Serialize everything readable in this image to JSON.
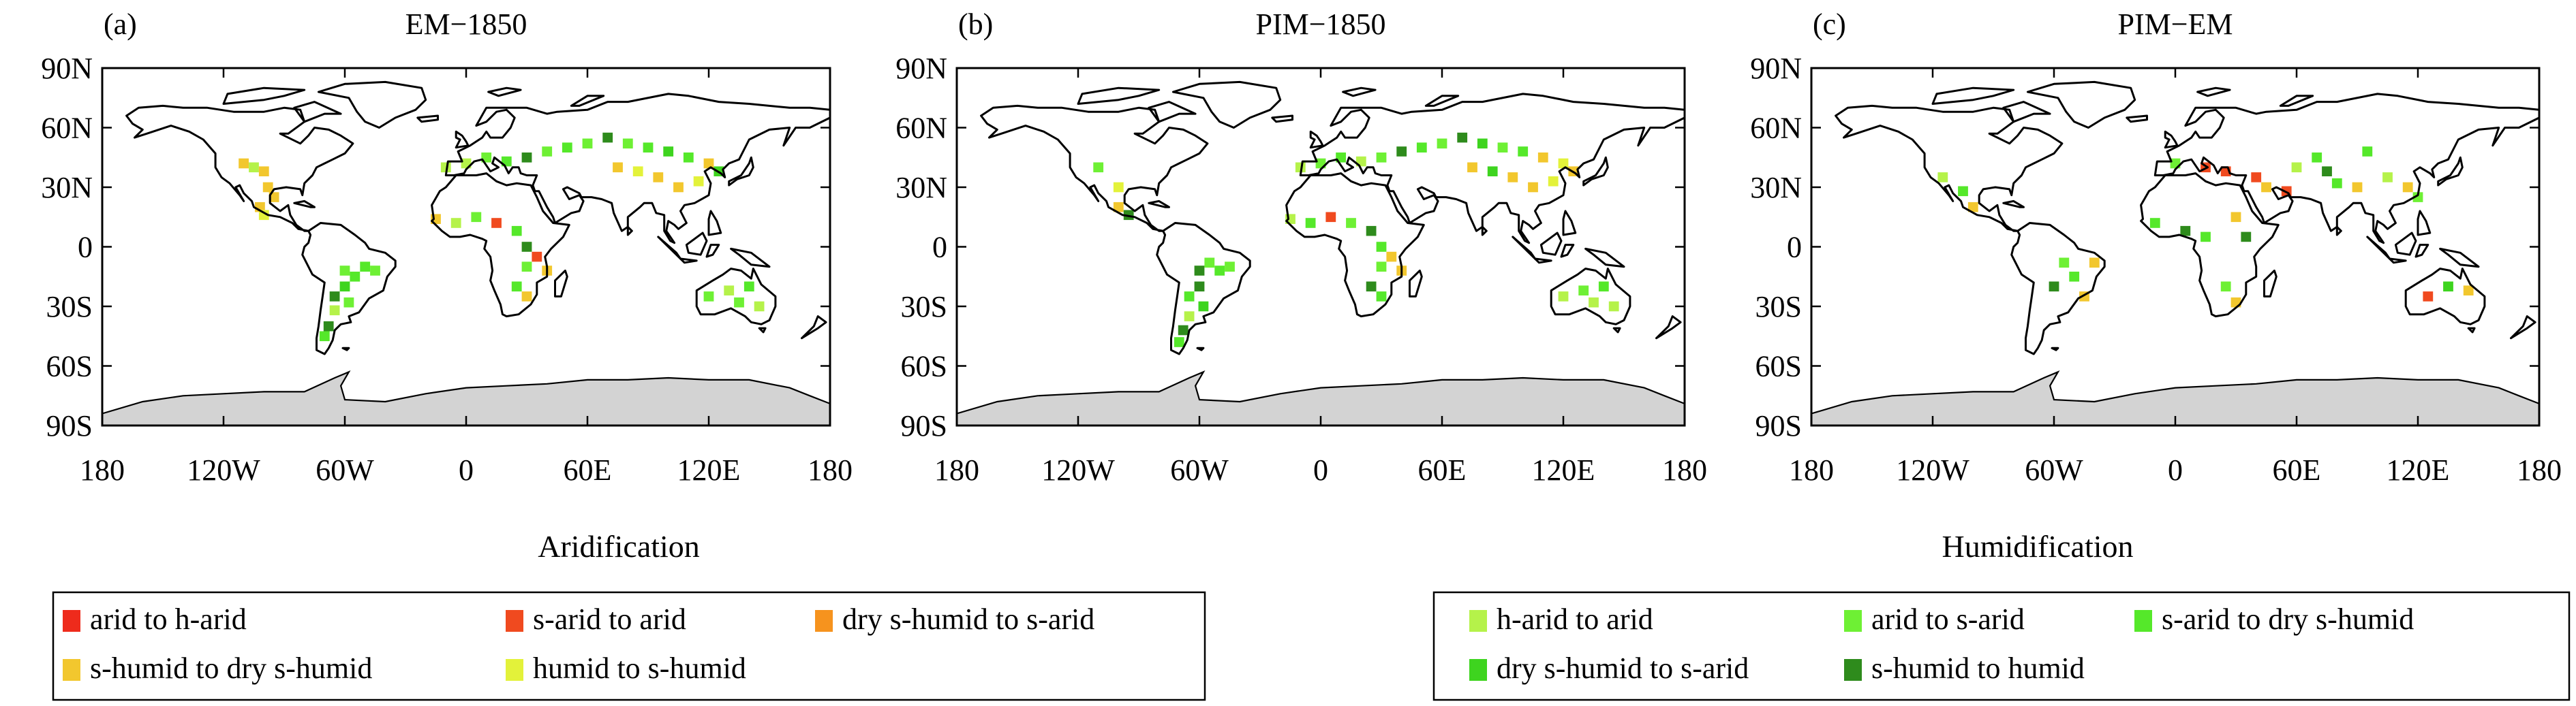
{
  "panels": [
    {
      "tag": "(a)",
      "title": "EM−1850"
    },
    {
      "tag": "(b)",
      "title": "PIM−1850"
    },
    {
      "tag": "(c)",
      "title": "PIM−EM"
    }
  ],
  "y_ticks": [
    "90N",
    "60N",
    "30N",
    "0",
    "30S",
    "60S",
    "90S"
  ],
  "x_ticks": [
    "180",
    "120W",
    "60W",
    "0",
    "60E",
    "120E",
    "180"
  ],
  "legend": {
    "aridification": {
      "title": "Aridification",
      "items": [
        {
          "label": "arid to h-arid",
          "color": "#ee2b1c"
        },
        {
          "label": "s-arid to arid",
          "color": "#f04a1f"
        },
        {
          "label": "dry s-humid to s-arid",
          "color": "#f6931e"
        },
        {
          "label": "s-humid to dry s-humid",
          "color": "#f2c72e"
        },
        {
          "label": "humid to s-humid",
          "color": "#e3f23a"
        }
      ]
    },
    "humidification": {
      "title": "Humidification",
      "items": [
        {
          "label": "h-arid to arid",
          "color": "#b5f24a"
        },
        {
          "label": "arid to s-arid",
          "color": "#6ef034"
        },
        {
          "label": "s-arid to dry s-humid",
          "color": "#55e82a"
        },
        {
          "label": "dry s-humid to s-arid",
          "color": "#3ed41f"
        },
        {
          "label": "s-humid to humid",
          "color": "#2e8b1c"
        }
      ]
    }
  },
  "colors": {
    "antarctica": "#d3d3d3",
    "coast": "#000000"
  },
  "chart_data": [
    {
      "type": "heatmap",
      "title": "EM−1850",
      "panel": "(a)",
      "xlim": [
        -180,
        180
      ],
      "ylim": [
        -90,
        90
      ],
      "cells": [
        [
          -110,
          42,
          "s-humid to dry s-humid"
        ],
        [
          -105,
          40,
          "h-arid to arid"
        ],
        [
          -100,
          38,
          "s-humid to dry s-humid"
        ],
        [
          -98,
          30,
          "s-humid to dry s-humid"
        ],
        [
          -95,
          25,
          "s-humid to dry s-humid"
        ],
        [
          -102,
          20,
          "s-humid to dry s-humid"
        ],
        [
          -100,
          16,
          "humid to s-humid"
        ],
        [
          -60,
          -12,
          "arid to s-arid"
        ],
        [
          -55,
          -15,
          "s-arid to dry s-humid"
        ],
        [
          -50,
          -10,
          "s-arid to dry s-humid"
        ],
        [
          -45,
          -12,
          "arid to s-arid"
        ],
        [
          -60,
          -20,
          "dry s-humid to s-arid"
        ],
        [
          -65,
          -25,
          "s-humid to humid"
        ],
        [
          -58,
          -28,
          "arid to s-arid"
        ],
        [
          -65,
          -32,
          "h-arid to arid"
        ],
        [
          -68,
          -40,
          "s-humid to humid"
        ],
        [
          -70,
          -45,
          "s-arid to dry s-humid"
        ],
        [
          -10,
          40,
          "h-arid to arid"
        ],
        [
          0,
          42,
          "h-arid to arid"
        ],
        [
          10,
          45,
          "arid to s-arid"
        ],
        [
          20,
          43,
          "s-arid to dry s-humid"
        ],
        [
          30,
          45,
          "s-humid to humid"
        ],
        [
          40,
          48,
          "arid to s-arid"
        ],
        [
          50,
          50,
          "s-arid to dry s-humid"
        ],
        [
          60,
          52,
          "arid to s-arid"
        ],
        [
          70,
          55,
          "s-humid to humid"
        ],
        [
          80,
          52,
          "arid to s-arid"
        ],
        [
          90,
          50,
          "s-arid to dry s-humid"
        ],
        [
          100,
          48,
          "dry s-humid to s-arid"
        ],
        [
          110,
          45,
          "s-arid to dry s-humid"
        ],
        [
          120,
          42,
          "s-humid to dry s-humid"
        ],
        [
          75,
          40,
          "s-humid to dry s-humid"
        ],
        [
          85,
          38,
          "humid to s-humid"
        ],
        [
          95,
          35,
          "s-humid to dry s-humid"
        ],
        [
          105,
          30,
          "s-humid to dry s-humid"
        ],
        [
          115,
          33,
          "humid to s-humid"
        ],
        [
          125,
          38,
          "dry s-humid to s-arid"
        ],
        [
          -15,
          14,
          "s-humid to dry s-humid"
        ],
        [
          -5,
          12,
          "h-arid to arid"
        ],
        [
          5,
          15,
          "arid to s-arid"
        ],
        [
          15,
          12,
          "s-arid to arid"
        ],
        [
          25,
          8,
          "s-arid to dry s-humid"
        ],
        [
          30,
          0,
          "s-humid to humid"
        ],
        [
          35,
          -5,
          "s-arid to arid"
        ],
        [
          30,
          -10,
          "arid to s-arid"
        ],
        [
          25,
          -20,
          "s-arid to dry s-humid"
        ],
        [
          30,
          -25,
          "s-humid to dry s-humid"
        ],
        [
          40,
          -12,
          "s-humid to dry s-humid"
        ],
        [
          120,
          -25,
          "arid to s-arid"
        ],
        [
          130,
          -22,
          "h-arid to arid"
        ],
        [
          140,
          -20,
          "s-arid to dry s-humid"
        ],
        [
          135,
          -28,
          "arid to s-arid"
        ],
        [
          145,
          -30,
          "h-arid to arid"
        ]
      ]
    },
    {
      "type": "heatmap",
      "title": "PIM−1850",
      "panel": "(b)",
      "xlim": [
        -180,
        180
      ],
      "ylim": [
        -90,
        90
      ],
      "cells": [
        [
          -110,
          40,
          "arid to s-arid"
        ],
        [
          -100,
          30,
          "humid to s-humid"
        ],
        [
          -100,
          20,
          "s-humid to dry s-humid"
        ],
        [
          -95,
          16,
          "s-humid to humid"
        ],
        [
          -60,
          -12,
          "s-humid to humid"
        ],
        [
          -55,
          -8,
          "arid to s-arid"
        ],
        [
          -50,
          -12,
          "s-arid to dry s-humid"
        ],
        [
          -45,
          -10,
          "arid to s-arid"
        ],
        [
          -60,
          -20,
          "s-humid to humid"
        ],
        [
          -65,
          -25,
          "s-arid to dry s-humid"
        ],
        [
          -58,
          -30,
          "dry s-humid to s-arid"
        ],
        [
          -65,
          -35,
          "h-arid to arid"
        ],
        [
          -68,
          -42,
          "s-humid to humid"
        ],
        [
          -70,
          -48,
          "s-arid to dry s-humid"
        ],
        [
          -10,
          40,
          "h-arid to arid"
        ],
        [
          0,
          42,
          "arid to s-arid"
        ],
        [
          10,
          45,
          "s-arid to dry s-humid"
        ],
        [
          20,
          43,
          "h-arid to arid"
        ],
        [
          30,
          45,
          "arid to s-arid"
        ],
        [
          40,
          48,
          "s-humid to humid"
        ],
        [
          50,
          50,
          "s-arid to dry s-humid"
        ],
        [
          60,
          52,
          "arid to s-arid"
        ],
        [
          70,
          55,
          "s-humid to humid"
        ],
        [
          80,
          52,
          "dry s-humid to s-arid"
        ],
        [
          90,
          50,
          "arid to s-arid"
        ],
        [
          100,
          48,
          "s-arid to dry s-humid"
        ],
        [
          110,
          45,
          "s-humid to dry s-humid"
        ],
        [
          120,
          42,
          "humid to s-humid"
        ],
        [
          75,
          40,
          "s-humid to dry s-humid"
        ],
        [
          85,
          38,
          "dry s-humid to s-arid"
        ],
        [
          95,
          35,
          "s-humid to dry s-humid"
        ],
        [
          105,
          30,
          "s-humid to dry s-humid"
        ],
        [
          115,
          33,
          "humid to s-humid"
        ],
        [
          125,
          38,
          "s-humid to dry s-humid"
        ],
        [
          -15,
          14,
          "h-arid to arid"
        ],
        [
          -5,
          12,
          "s-arid to dry s-humid"
        ],
        [
          5,
          15,
          "s-arid to arid"
        ],
        [
          15,
          12,
          "arid to s-arid"
        ],
        [
          25,
          8,
          "s-humid to humid"
        ],
        [
          30,
          0,
          "s-arid to dry s-humid"
        ],
        [
          35,
          -5,
          "s-humid to dry s-humid"
        ],
        [
          30,
          -10,
          "arid to s-arid"
        ],
        [
          25,
          -20,
          "s-humid to humid"
        ],
        [
          30,
          -25,
          "s-arid to dry s-humid"
        ],
        [
          40,
          -12,
          "s-humid to dry s-humid"
        ],
        [
          120,
          -25,
          "h-arid to arid"
        ],
        [
          130,
          -22,
          "arid to s-arid"
        ],
        [
          140,
          -20,
          "s-arid to dry s-humid"
        ],
        [
          135,
          -28,
          "h-arid to arid"
        ],
        [
          145,
          -30,
          "h-arid to arid"
        ]
      ]
    },
    {
      "type": "heatmap",
      "title": "PIM−EM",
      "panel": "(c)",
      "xlim": [
        -180,
        180
      ],
      "ylim": [
        -90,
        90
      ],
      "cells": [
        [
          -115,
          35,
          "h-arid to arid"
        ],
        [
          -105,
          28,
          "s-arid to dry s-humid"
        ],
        [
          -100,
          20,
          "s-humid to dry s-humid"
        ],
        [
          -55,
          -8,
          "arid to s-arid"
        ],
        [
          -60,
          -20,
          "s-humid to humid"
        ],
        [
          -50,
          -15,
          "s-arid to dry s-humid"
        ],
        [
          -45,
          -25,
          "s-humid to dry s-humid"
        ],
        [
          -40,
          -8,
          "s-humid to dry s-humid"
        ],
        [
          0,
          42,
          "arid to s-arid"
        ],
        [
          15,
          40,
          "s-arid to arid"
        ],
        [
          25,
          38,
          "s-arid to arid"
        ],
        [
          40,
          35,
          "s-arid to arid"
        ],
        [
          45,
          30,
          "s-humid to dry s-humid"
        ],
        [
          55,
          28,
          "s-arid to arid"
        ],
        [
          60,
          40,
          "h-arid to arid"
        ],
        [
          70,
          45,
          "s-arid to dry s-humid"
        ],
        [
          75,
          38,
          "s-humid to humid"
        ],
        [
          80,
          32,
          "s-arid to dry s-humid"
        ],
        [
          90,
          30,
          "s-humid to dry s-humid"
        ],
        [
          95,
          48,
          "s-arid to dry s-humid"
        ],
        [
          105,
          35,
          "h-arid to arid"
        ],
        [
          115,
          30,
          "s-humid to dry s-humid"
        ],
        [
          120,
          25,
          "arid to s-arid"
        ],
        [
          -10,
          12,
          "s-arid to dry s-humid"
        ],
        [
          5,
          8,
          "s-humid to humid"
        ],
        [
          15,
          5,
          "s-arid to dry s-humid"
        ],
        [
          30,
          15,
          "s-humid to dry s-humid"
        ],
        [
          35,
          5,
          "s-humid to humid"
        ],
        [
          25,
          -20,
          "arid to s-arid"
        ],
        [
          30,
          -28,
          "s-humid to dry s-humid"
        ],
        [
          125,
          -25,
          "s-arid to arid"
        ],
        [
          135,
          -20,
          "dry s-humid to s-arid"
        ],
        [
          145,
          -22,
          "s-humid to dry s-humid"
        ]
      ]
    }
  ]
}
